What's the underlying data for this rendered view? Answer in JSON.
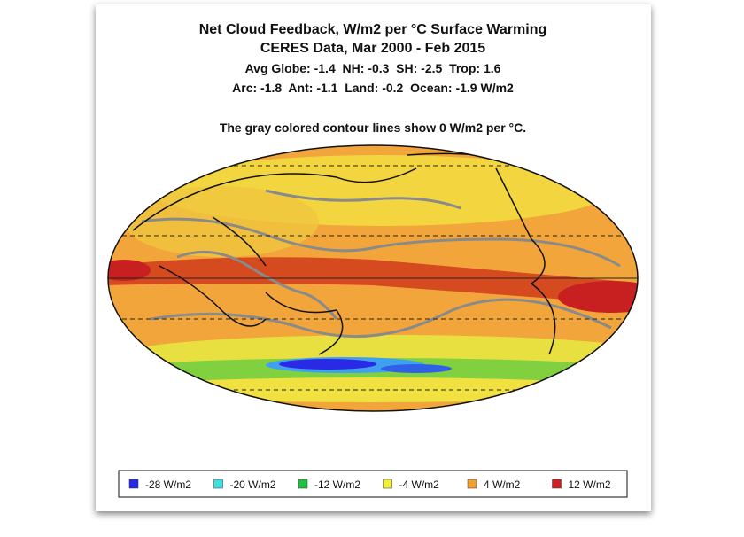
{
  "figure": {
    "title_lines": [
      "Net Cloud Feedback, W/m2 per °C Surface Warming",
      "CERES Data, Mar 2000 - Feb 2015"
    ],
    "stats_lines": [
      "Avg Globe: -1.4  NH: -0.3  SH: -2.5  Trop: 1.6",
      "Arc: -1.8  Ant: -1.1  Land: -0.2  Ocean: -1.9 W/m2"
    ],
    "note": "The gray colored contour lines show 0 W/m2 per °C.",
    "legend": [
      {
        "label": "-28 W/m2",
        "color": "#2a2ae6"
      },
      {
        "label": "-20 W/m2",
        "color": "#40e0e0"
      },
      {
        "label": "-12 W/m2",
        "color": "#20c040"
      },
      {
        "label": "-4 W/m2",
        "color": "#f0f040"
      },
      {
        "label": "4 W/m2",
        "color": "#f0a030"
      },
      {
        "label": "12 W/m2",
        "color": "#d02020"
      }
    ]
  }
}
